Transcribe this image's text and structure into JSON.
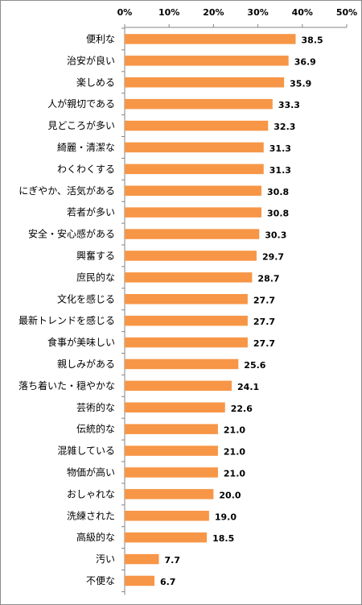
{
  "chart_data": {
    "type": "bar",
    "orientation": "horizontal",
    "categories": [
      "便利な",
      "治安が良い",
      "楽しめる",
      "人が親切である",
      "見どころが多い",
      "綺麗・清潔な",
      "わくわくする",
      "にぎやか、活気がある",
      "若者が多い",
      "安全・安心感がある",
      "興奮する",
      "庶民的な",
      "文化を感じる",
      "最新トレンドを感じる",
      "食事が美味しい",
      "親しみがある",
      "落ち着いた・穏やかな",
      "芸術的な",
      "伝統的な",
      "混雑している",
      "物価が高い",
      "おしゃれな",
      "洗練された",
      "高級的な",
      "汚い",
      "不便な"
    ],
    "values": [
      38.5,
      36.9,
      35.9,
      33.3,
      32.3,
      31.3,
      31.3,
      30.8,
      30.8,
      30.3,
      29.7,
      28.7,
      27.7,
      27.7,
      27.7,
      25.6,
      24.1,
      22.6,
      21.0,
      21.0,
      21.0,
      20.0,
      19.0,
      18.5,
      7.7,
      6.7
    ],
    "value_labels": [
      "38.5",
      "36.9",
      "35.9",
      "33.3",
      "32.3",
      "31.3",
      "31.3",
      "30.8",
      "30.8",
      "30.3",
      "29.7",
      "28.7",
      "27.7",
      "27.7",
      "27.7",
      "25.6",
      "24.1",
      "22.6",
      "21.0",
      "21.0",
      "21.0",
      "20.0",
      "19.0",
      "18.5",
      "7.7",
      "6.7"
    ],
    "xlim": [
      0,
      50
    ],
    "ticks": [
      0,
      10,
      20,
      30,
      40,
      50
    ],
    "tick_labels": [
      "0%",
      "10%",
      "20%",
      "30%",
      "40%",
      "50%"
    ],
    "axis_position": "top",
    "grid": false,
    "bar_color": "#F79646",
    "title": "",
    "xlabel": "",
    "ylabel": ""
  }
}
